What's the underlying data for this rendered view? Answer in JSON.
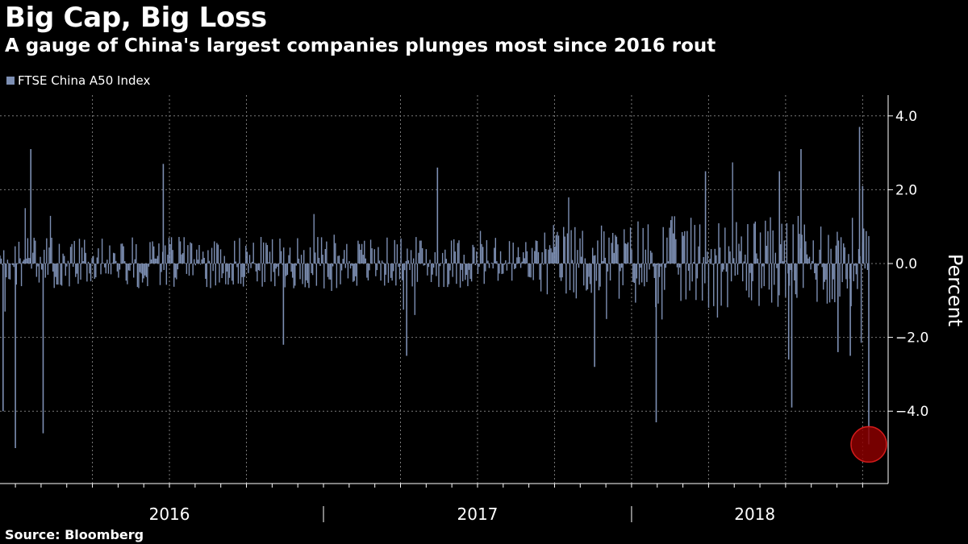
{
  "title": "Big Cap, Big Loss",
  "subtitle": "A gauge of China's largest companies plunges most since 2016 rout",
  "source": "Source: Bloomberg",
  "colors": {
    "background": "#000000",
    "bars": "#7d8fb3",
    "highlight_fill": "#8b0000",
    "highlight_stroke": "#d21b1b",
    "grid": "#7a7a7a",
    "text": "#ffffff"
  },
  "chart_data": {
    "type": "bar",
    "title": "Big Cap, Big Loss",
    "subtitle": "A gauge of China's largest companies plunges most since 2016 rout",
    "ylabel": "Percent",
    "ylim": [
      -5.9,
      4.5
    ],
    "y_ticks": [
      "4.0",
      "2.0",
      "0.0",
      "-2.0",
      "-4.0"
    ],
    "y_tick_values": [
      4.0,
      2.0,
      0.0,
      -2.0,
      -4.0
    ],
    "x_range": [
      2015.95,
      2018.81
    ],
    "year_labels": [
      {
        "label": "2016",
        "center": 2016.5
      },
      {
        "label": "2017",
        "center": 2017.5
      },
      {
        "label": "2018",
        "center": 2018.4
      }
    ],
    "year_boundaries": [
      2017.0,
      2018.0
    ],
    "x_gridlines": [
      2016.25,
      2016.5,
      2016.75,
      2017.25,
      2017.5,
      2017.75,
      2018.0,
      2018.25,
      2018.5,
      2018.75
    ],
    "series": [
      {
        "name": "FTSE China A50 Index",
        "description": "daily percent change",
        "notable_points": [
          {
            "x": 2015.96,
            "value": -4.0
          },
          {
            "x": 2016.0,
            "value": -5.0
          },
          {
            "x": 2016.05,
            "value": 3.1
          },
          {
            "x": 2016.09,
            "value": -4.6
          },
          {
            "x": 2016.48,
            "value": 2.7
          },
          {
            "x": 2016.87,
            "value": -2.2
          },
          {
            "x": 2017.27,
            "value": -2.5
          },
          {
            "x": 2017.37,
            "value": 2.6
          },
          {
            "x": 2017.88,
            "value": -2.8
          },
          {
            "x": 2018.08,
            "value": -4.3
          },
          {
            "x": 2018.24,
            "value": 2.5
          },
          {
            "x": 2018.48,
            "value": 2.5
          },
          {
            "x": 2018.51,
            "value": -2.6
          },
          {
            "x": 2018.52,
            "value": -3.9
          },
          {
            "x": 2018.55,
            "value": 3.1
          },
          {
            "x": 2018.67,
            "value": -2.4
          },
          {
            "x": 2018.71,
            "value": -2.5
          },
          {
            "x": 2018.74,
            "value": 3.7
          },
          {
            "x": 2018.75,
            "value": 2.1
          },
          {
            "x": 2018.77,
            "value": -4.9
          }
        ]
      }
    ],
    "highlight": {
      "x": 2018.77,
      "value": -4.9
    }
  }
}
